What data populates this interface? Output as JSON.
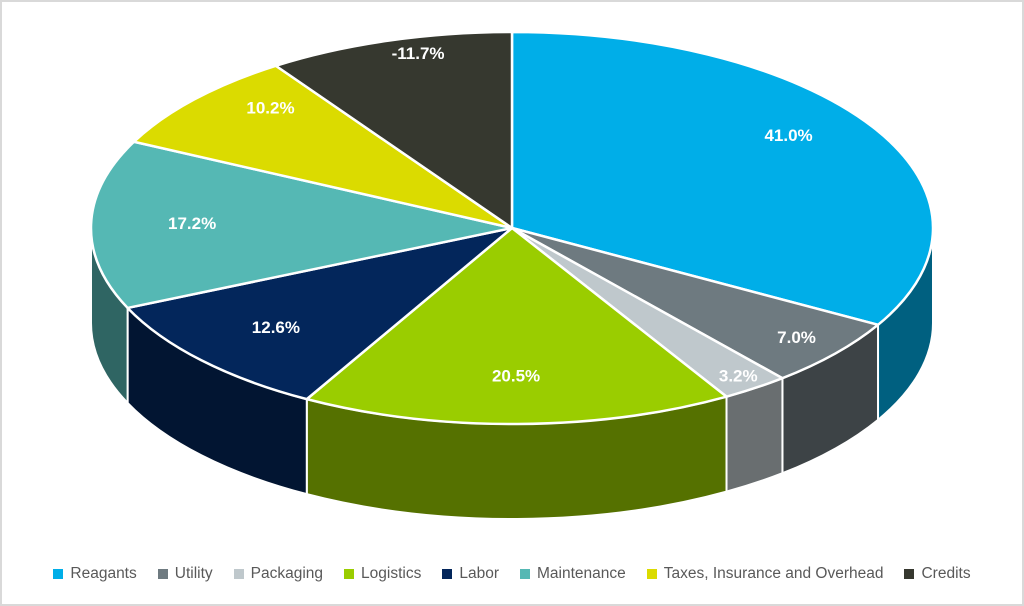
{
  "chart_data": {
    "type": "pie",
    "style": "3d",
    "title": "",
    "start_angle_deg": 0,
    "direction": "clockwise",
    "grid": false,
    "legend_position": "bottom",
    "label_format": "percent",
    "label_color": "#FFFFFF",
    "legend_text_color": "#595959",
    "background_color": "#FFFFFF",
    "frame_border_color": "#D9D9D9",
    "slice_border_color": "#FFFFFF",
    "slices": [
      {
        "label": "Reagants",
        "value_pct": 41.0,
        "display": "41.0%",
        "color": "#00AEE8"
      },
      {
        "label": "Utility",
        "value_pct": 7.0,
        "display": "7.0%",
        "color": "#6E7A80"
      },
      {
        "label": "Packaging",
        "value_pct": 3.2,
        "display": "3.2%",
        "color": "#BFC8CC"
      },
      {
        "label": "Logistics",
        "value_pct": 20.5,
        "display": "20.5%",
        "color": "#9ACD00"
      },
      {
        "label": "Labor",
        "value_pct": 12.6,
        "display": "12.6%",
        "color": "#03265B"
      },
      {
        "label": "Maintenance",
        "value_pct": 17.2,
        "display": "17.2%",
        "color": "#55B8B4"
      },
      {
        "label": "Taxes, Insurance and Overhead",
        "value_pct": 10.2,
        "display": "10.2%",
        "color": "#DBDB00"
      },
      {
        "label": "Credits",
        "value_pct": -11.7,
        "display": "-11.7%",
        "color": "#36382F"
      }
    ]
  }
}
